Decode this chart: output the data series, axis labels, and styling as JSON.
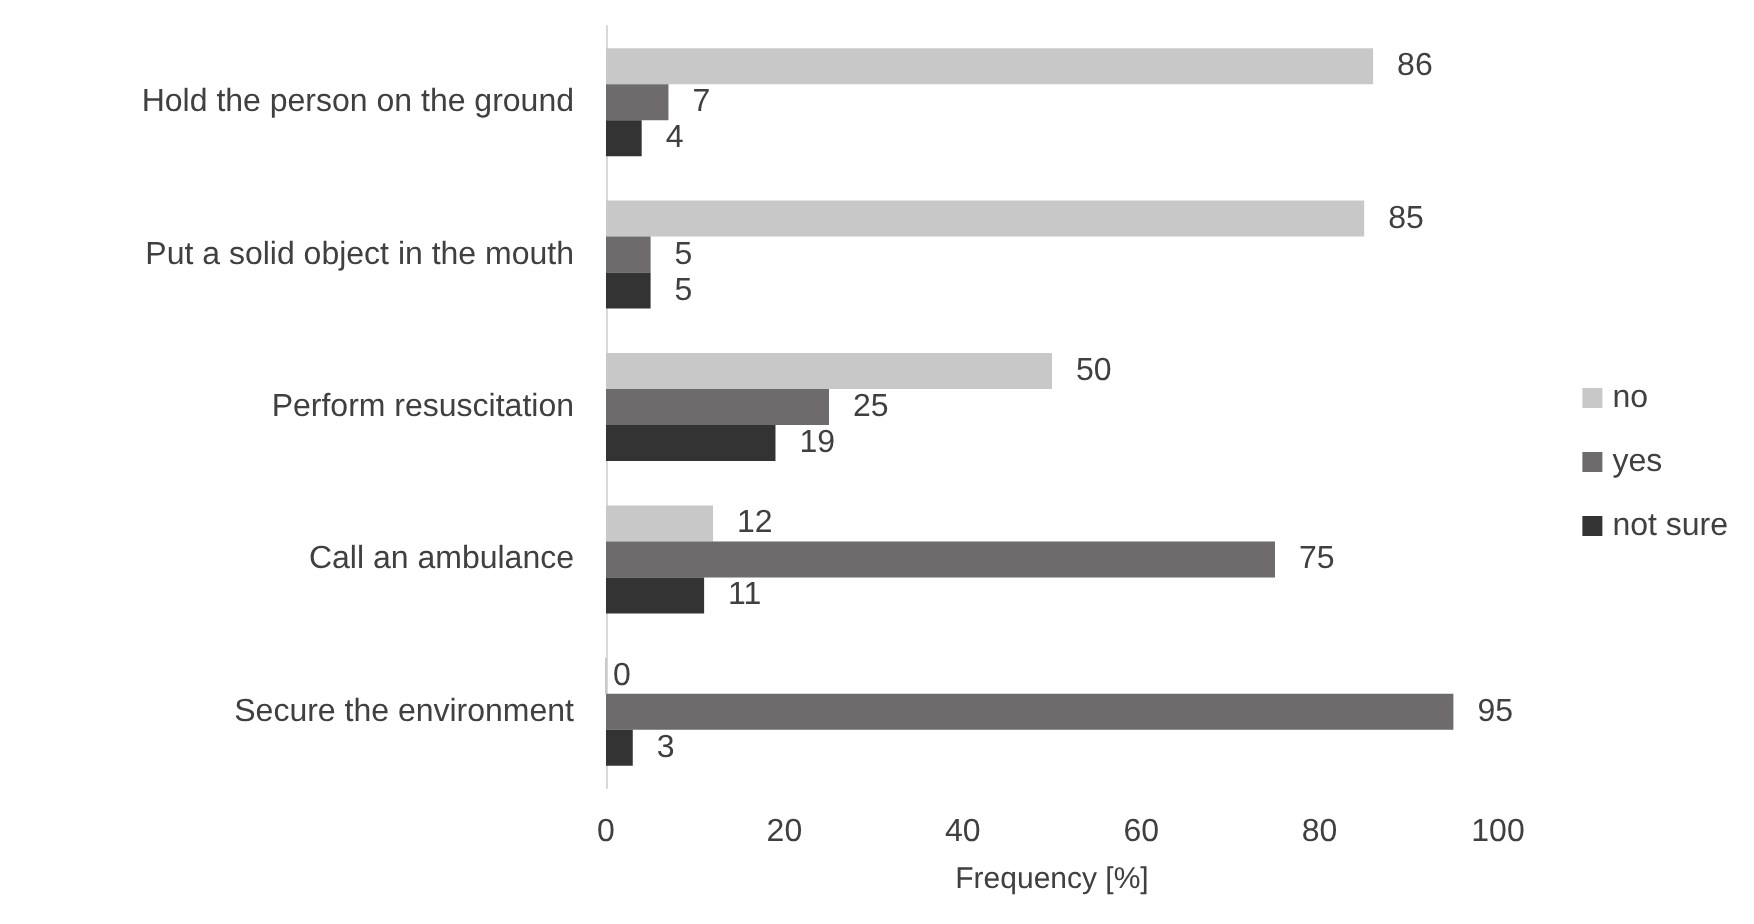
{
  "chart_data": {
    "type": "bar",
    "orientation": "horizontal",
    "xlabel": "Frequency [%]",
    "categories": [
      "Hold the person on the ground",
      "Put a solid object in the mouth",
      "Perform resuscitation",
      "Call an ambulance",
      "Secure the environment"
    ],
    "series": [
      {
        "name": "no",
        "color": "#c8c8c8",
        "values": [
          86,
          85,
          50,
          12,
          0
        ]
      },
      {
        "name": "yes",
        "color": "#6d6b6b",
        "values": [
          7,
          5,
          25,
          75,
          95
        ]
      },
      {
        "name": "not sure",
        "color": "#333333",
        "values": [
          4,
          5,
          19,
          11,
          3
        ]
      }
    ],
    "xlim": [
      0,
      100
    ],
    "xticks": [
      0,
      20,
      40,
      60,
      80,
      100
    ],
    "grid": false,
    "legend": "right",
    "data_labels": true
  }
}
